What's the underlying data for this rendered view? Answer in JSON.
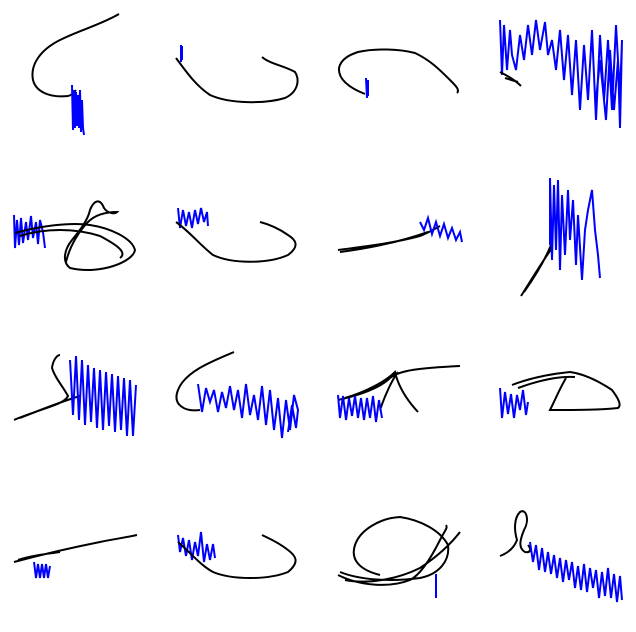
{
  "grid": {
    "rows": 4,
    "cols": 4
  },
  "colors": {
    "background": "#ffffff",
    "stroke_primary": "#000000",
    "stroke_secondary": "#0000ff"
  },
  "cells": [
    {
      "id": 1,
      "name": "scribble-r1c1"
    },
    {
      "id": 2,
      "name": "scribble-r1c2"
    },
    {
      "id": 3,
      "name": "scribble-r1c3"
    },
    {
      "id": 4,
      "name": "scribble-r1c4"
    },
    {
      "id": 5,
      "name": "scribble-r2c1"
    },
    {
      "id": 6,
      "name": "scribble-r2c2"
    },
    {
      "id": 7,
      "name": "scribble-r2c3"
    },
    {
      "id": 8,
      "name": "scribble-r2c4"
    },
    {
      "id": 9,
      "name": "scribble-r3c1"
    },
    {
      "id": 10,
      "name": "scribble-r3c2"
    },
    {
      "id": 11,
      "name": "scribble-r3c3"
    },
    {
      "id": 12,
      "name": "scribble-r3c4"
    },
    {
      "id": 13,
      "name": "scribble-r4c1"
    },
    {
      "id": 14,
      "name": "scribble-r4c2"
    },
    {
      "id": 15,
      "name": "scribble-r4c3"
    },
    {
      "id": 16,
      "name": "scribble-r4c4"
    }
  ]
}
